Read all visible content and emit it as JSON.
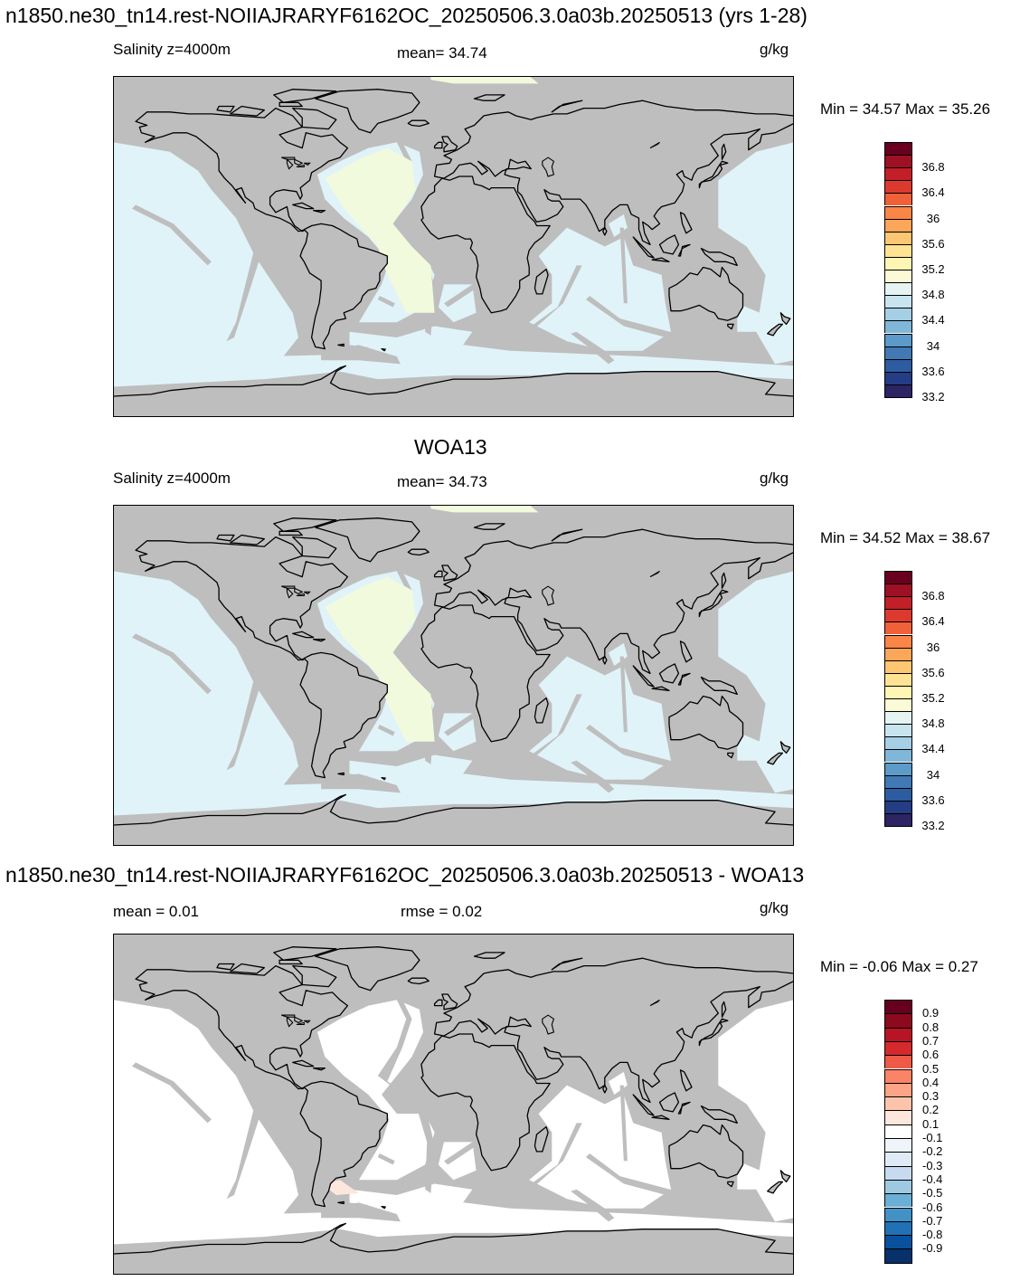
{
  "page": {
    "top_title": "n1850.ne30_tn14.rest-NOIIAJRARYF6162OC_20250506.3.0a03b.20250513 (yrs 1-28)",
    "middle_title": "WOA13",
    "bottom_title": "n1850.ne30_tn14.rest-NOIIAJRARYF6162OC_20250506.3.0a03b.20250513 - WOA13"
  },
  "panels": [
    {
      "left_label": "Salinity z=4000m",
      "center_label": "mean=  34.74",
      "units": "g/kg",
      "minmax": "Min =  34.57 Max =  35.26"
    },
    {
      "left_label": "Salinity z=4000m",
      "center_label": "mean=  34.73",
      "units": "g/kg",
      "minmax": "Min =  34.52 Max =  38.67"
    },
    {
      "left_label": "mean =   0.01",
      "center_label": "rmse =   0.02",
      "units": "g/kg",
      "minmax": "Min =  -0.06 Max =   0.27"
    }
  ],
  "chart_data": [
    {
      "type": "heatmap",
      "title": "Salinity z=4000m",
      "units": "g/kg",
      "mean": 34.74,
      "min": 34.57,
      "max": 35.26,
      "colorbar": {
        "levels": [
          33.2,
          33.4,
          33.6,
          33.8,
          34.0,
          34.2,
          34.4,
          34.6,
          34.8,
          35.0,
          35.2,
          35.4,
          35.6,
          35.8,
          36.0,
          36.2,
          36.4,
          36.6,
          36.8,
          37.0
        ],
        "tick_labels": [
          "36.8",
          "36.4",
          "36",
          "35.6",
          "35.2",
          "34.8",
          "34.4",
          "34",
          "33.6",
          "33.2"
        ],
        "colors": [
          "#2d2463",
          "#243d84",
          "#2d5ca0",
          "#4179b5",
          "#5b9ac9",
          "#80b7d9",
          "#a5cfe5",
          "#c8e4ef",
          "#e6f3f3",
          "#fafbd6",
          "#fff6b5",
          "#fee394",
          "#fdc673",
          "#fca659",
          "#f98547",
          "#f0613a",
          "#dd3a2f",
          "#c21f28",
          "#9e1024",
          "#6a0020"
        ]
      },
      "ocean_color": "#e0f3f8",
      "atlantic_color": "#f2fade"
    },
    {
      "type": "heatmap",
      "title": "Salinity z=4000m",
      "subtitle": "WOA13",
      "units": "g/kg",
      "mean": 34.73,
      "min": 34.52,
      "max": 38.67,
      "colorbar": {
        "levels": [
          33.2,
          33.4,
          33.6,
          33.8,
          34.0,
          34.2,
          34.4,
          34.6,
          34.8,
          35.0,
          35.2,
          35.4,
          35.6,
          35.8,
          36.0,
          36.2,
          36.4,
          36.6,
          36.8,
          37.0
        ],
        "tick_labels": [
          "36.8",
          "36.4",
          "36",
          "35.6",
          "35.2",
          "34.8",
          "34.4",
          "34",
          "33.6",
          "33.2"
        ],
        "colors": [
          "#2d2463",
          "#243d84",
          "#2d5ca0",
          "#4179b5",
          "#5b9ac9",
          "#80b7d9",
          "#a5cfe5",
          "#c8e4ef",
          "#e6f3f3",
          "#fafbd6",
          "#fff6b5",
          "#fee394",
          "#fdc673",
          "#fca659",
          "#f98547",
          "#f0613a",
          "#dd3a2f",
          "#c21f28",
          "#9e1024",
          "#6a0020"
        ]
      },
      "ocean_color": "#e0f3f8",
      "atlantic_color": "#f2fade"
    },
    {
      "type": "heatmap",
      "title": "model - WOA13",
      "units": "g/kg",
      "mean": 0.01,
      "rmse": 0.02,
      "min": -0.06,
      "max": 0.27,
      "colorbar": {
        "tick_labels": [
          "0.9",
          "0.8",
          "0.7",
          "0.6",
          "0.5",
          "0.4",
          "0.3",
          "0.2",
          "0.1",
          "-0.1",
          "-0.2",
          "-0.3",
          "-0.4",
          "-0.5",
          "-0.6",
          "-0.7",
          "-0.8",
          "-0.9"
        ],
        "colors": [
          "#08306b",
          "#08519c",
          "#2171b5",
          "#4292c6",
          "#6baed6",
          "#9ecae1",
          "#c6dbef",
          "#deebf7",
          "#eef4fa",
          "#ffffff",
          "#fde6dc",
          "#fcc5ab",
          "#fca486",
          "#f98466",
          "#ed5a48",
          "#d42a2d",
          "#b71526",
          "#8c0a1e",
          "#67001f"
        ]
      },
      "ocean_color": "#ffffff"
    }
  ],
  "colors": {
    "land_mask": "#bebebe",
    "coast": "#000000"
  }
}
